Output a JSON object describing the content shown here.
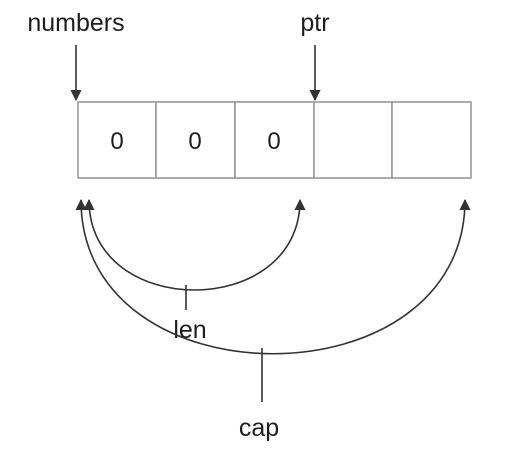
{
  "labels": {
    "numbers": "numbers",
    "ptr": "ptr",
    "len": "len",
    "cap": "cap"
  },
  "cells": [
    "0",
    "0",
    "0",
    "",
    ""
  ],
  "colors": {
    "ink": "#1e1e1e",
    "cell_border": "#9a9a9a",
    "background": "#ffffff"
  }
}
